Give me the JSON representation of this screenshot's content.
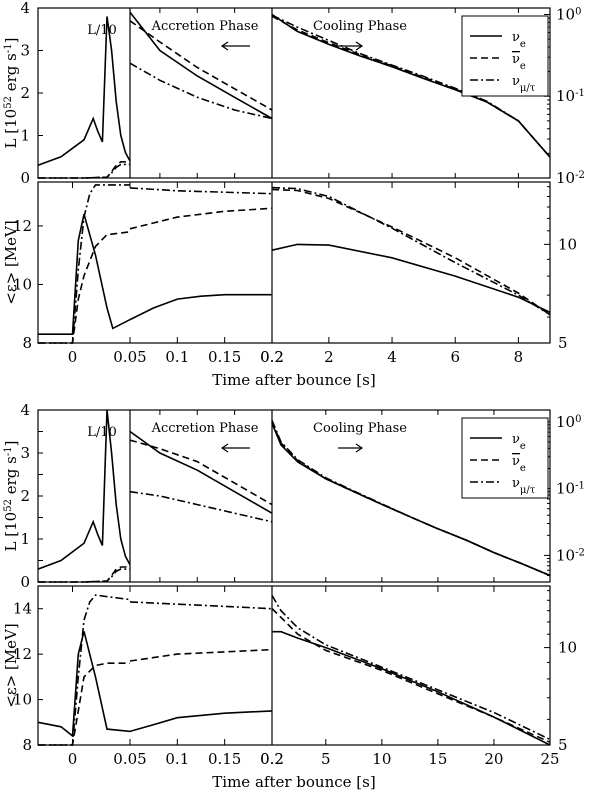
{
  "chart_data": [
    {
      "type": "line",
      "figure": "top",
      "xlabel": "Time after bounce [s]",
      "legend": {
        "placement": "top-right",
        "entries": [
          "νe",
          "ν̄e",
          "νμ/τ"
        ]
      },
      "annotations": {
        "inset": "L/10",
        "accretion": "Accretion Phase",
        "cooling": "Cooling Phase"
      },
      "luminosity_panel": {
        "ylabel": "L [10^52 erg s^-1]",
        "left_ylim": [
          0,
          4
        ],
        "left_yticks": [
          "0",
          "1",
          "2",
          "3",
          "4"
        ],
        "right_scale": "log",
        "right_ylim": [
          0.01,
          1.2
        ],
        "right_yticks": [
          {
            "v": 1,
            "t": "10^0"
          },
          {
            "v": 0.1,
            "t": "10^-1"
          },
          {
            "v": 0.01,
            "t": "10^-2"
          }
        ],
        "early_xlim": [
          -0.03,
          0.01
        ],
        "accretion_xlim": [
          0.01,
          0.2
        ],
        "accretion_xticks": [
          "0.05",
          "0.1",
          "0.15",
          "0.2"
        ],
        "cooling_xlim": [
          0.2,
          9
        ],
        "cooling_xticks": [
          "2",
          "4",
          "6",
          "8"
        ],
        "early_series": [
          {
            "name": "νe",
            "x": [
              -0.03,
              -0.02,
              -0.01,
              -0.006,
              -0.004,
              -0.002,
              0,
              0.002,
              0.004,
              0.006,
              0.008,
              0.01
            ],
            "y": [
              0.3,
              0.5,
              0.9,
              1.4,
              1.1,
              0.85,
              3.8,
              3.0,
              1.8,
              1.0,
              0.6,
              0.4
            ]
          },
          {
            "name": "ν̄e",
            "x": [
              -0.03,
              -0.01,
              0,
              0.002,
              0.004,
              0.006,
              0.01
            ],
            "y": [
              0,
              0,
              0.02,
              0.15,
              0.3,
              0.38,
              0.38
            ]
          },
          {
            "name": "νμ/τ",
            "x": [
              -0.03,
              -0.01,
              0,
              0.002,
              0.004,
              0.006,
              0.01
            ],
            "y": [
              0,
              0,
              0.02,
              0.12,
              0.25,
              0.32,
              0.32
            ]
          }
        ],
        "accretion_series": [
          {
            "name": "νe",
            "x": [
              0.01,
              0.05,
              0.1,
              0.15,
              0.2
            ],
            "y": [
              3.9,
              3.0,
              2.4,
              1.9,
              1.4
            ]
          },
          {
            "name": "ν̄e",
            "x": [
              0.01,
              0.05,
              0.1,
              0.15,
              0.2
            ],
            "y": [
              3.7,
              3.2,
              2.6,
              2.1,
              1.6
            ]
          },
          {
            "name": "νμ/τ",
            "x": [
              0.01,
              0.05,
              0.1,
              0.15,
              0.2
            ],
            "y": [
              2.7,
              2.3,
              1.9,
              1.6,
              1.4
            ]
          }
        ],
        "cooling_series": [
          {
            "name": "νe",
            "x": [
              0.2,
              1,
              2,
              3,
              4,
              5,
              6,
              7,
              8,
              9
            ],
            "y": [
              1.0,
              0.62,
              0.43,
              0.31,
              0.23,
              0.165,
              0.12,
              0.085,
              0.05,
              0.018
            ]
          },
          {
            "name": "ν̄e",
            "x": [
              0.2,
              1,
              2,
              3,
              4,
              5,
              6,
              7,
              8,
              9
            ],
            "y": [
              0.95,
              0.65,
              0.45,
              0.32,
              0.235,
              0.17,
              0.122,
              0.085,
              0.05,
              0.018
            ]
          },
          {
            "name": "νμ/τ",
            "x": [
              0.2,
              1,
              2,
              3,
              4,
              5,
              6,
              7,
              8,
              9
            ],
            "y": [
              0.98,
              0.7,
              0.48,
              0.33,
              0.24,
              0.175,
              0.125,
              0.087,
              0.05,
              0.018
            ]
          }
        ]
      },
      "energy_panel": {
        "ylabel": "<ε> [MeV]",
        "left_ylim": [
          8,
          13.5
        ],
        "left_yticks": [
          "8",
          "10",
          "12"
        ],
        "right_ylim": [
          5,
          15.5
        ],
        "right_yticks": [
          "5",
          "10"
        ],
        "early_xlim": [
          -0.03,
          0.05
        ],
        "early_xticks": [
          "0",
          "0.05"
        ],
        "accretion_xlim": [
          0.05,
          0.2
        ],
        "accretion_xticks": [
          "0.1",
          "0.15",
          "0.2"
        ],
        "cooling_xlim": [
          0.2,
          9
        ],
        "cooling_xticks": [
          "0.2",
          "2",
          "4",
          "6",
          "8"
        ],
        "series": [
          {
            "name": "νe",
            "early": {
              "x": [
                -0.03,
                -0.01,
                0,
                0.005,
                0.01,
                0.02,
                0.03,
                0.035,
                0.05
              ],
              "y": [
                8.3,
                8.3,
                8.3,
                11.5,
                12.4,
                11.0,
                9.2,
                8.5,
                8.8
              ]
            },
            "accretion": {
              "x": [
                0.05,
                0.075,
                0.1,
                0.125,
                0.15,
                0.2
              ],
              "y": [
                8.8,
                9.2,
                9.5,
                9.6,
                9.65,
                9.65
              ]
            },
            "cooling": {
              "x": [
                0.2,
                1,
                2,
                4,
                6,
                8,
                9
              ],
              "y": [
                9.6,
                10.0,
                9.95,
                9.1,
                8.0,
                6.9,
                6.2
              ]
            }
          },
          {
            "name": "ν̄e",
            "early": {
              "x": [
                -0.03,
                0,
                0.005,
                0.01,
                0.02,
                0.03,
                0.05
              ],
              "y": [
                8.0,
                8.0,
                9.5,
                10.3,
                11.3,
                11.7,
                11.8
              ]
            },
            "accretion": {
              "x": [
                0.05,
                0.1,
                0.15,
                0.2
              ],
              "y": [
                11.9,
                12.3,
                12.5,
                12.6
              ]
            },
            "cooling": {
              "x": [
                0.2,
                1,
                2,
                4,
                6,
                8,
                9
              ],
              "y": [
                14.7,
                14.6,
                13.8,
                11.3,
                9.1,
                7.1,
                6.1
              ]
            }
          },
          {
            "name": "νμ/τ",
            "early": {
              "x": [
                -0.03,
                0,
                0.005,
                0.01,
                0.015,
                0.02,
                0.05
              ],
              "y": [
                8.0,
                8.0,
                10.5,
                12.3,
                13.1,
                13.4,
                13.4
              ]
            },
            "accretion": {
              "x": [
                0.05,
                0.1,
                0.15,
                0.2
              ],
              "y": [
                13.3,
                13.2,
                13.15,
                13.1
              ]
            },
            "cooling": {
              "x": [
                0.2,
                1,
                2,
                4,
                6,
                8,
                9
              ],
              "y": [
                14.9,
                14.8,
                14.0,
                11.2,
                8.8,
                7.0,
                6.1
              ]
            }
          }
        ]
      }
    },
    {
      "type": "line",
      "figure": "bottom",
      "xlabel": "Time after bounce [s]",
      "legend": {
        "placement": "top-right",
        "entries": [
          "νe",
          "ν̄e",
          "νμ/τ"
        ]
      },
      "annotations": {
        "inset": "L/10",
        "accretion": "Accretion Phase",
        "cooling": "Cooling Phase"
      },
      "luminosity_panel": {
        "ylabel": "L [10^52 erg s^-1]",
        "left_ylim": [
          0,
          4
        ],
        "left_yticks": [
          "0",
          "0.5",
          "1",
          "1.5",
          "2",
          "2.5",
          "3",
          "3.5",
          "4"
        ],
        "right_scale": "log",
        "right_ylim": [
          0.004,
          1.5
        ],
        "right_yticks": [
          {
            "v": 1,
            "t": "10^0"
          },
          {
            "v": 0.1,
            "t": "10^-1"
          },
          {
            "v": 0.01,
            "t": "10^-2"
          }
        ],
        "early_xlim": [
          -0.03,
          0.01
        ],
        "accretion_xlim": [
          0.01,
          0.2
        ],
        "accretion_xticks": [
          "0.05",
          "0.1",
          "0.15",
          "0.2"
        ],
        "cooling_xlim": [
          0.2,
          25
        ],
        "cooling_xticks": [
          "5",
          "10",
          "15",
          "20",
          "25"
        ],
        "early_series": [
          {
            "name": "νe",
            "x": [
              -0.03,
              -0.02,
              -0.01,
              -0.006,
              -0.004,
              -0.002,
              0,
              0.002,
              0.004,
              0.006,
              0.008,
              0.01
            ],
            "y": [
              0.3,
              0.5,
              0.9,
              1.4,
              1.1,
              0.85,
              4.0,
              3.0,
              1.8,
              1.0,
              0.6,
              0.4
            ]
          },
          {
            "name": "ν̄e",
            "x": [
              -0.03,
              -0.01,
              0,
              0.002,
              0.004,
              0.006,
              0.01
            ],
            "y": [
              0,
              0,
              0.02,
              0.15,
              0.3,
              0.35,
              0.35
            ]
          },
          {
            "name": "νμ/τ",
            "x": [
              -0.03,
              -0.01,
              0,
              0.002,
              0.004,
              0.006,
              0.01
            ],
            "y": [
              0,
              0,
              0.02,
              0.12,
              0.25,
              0.3,
              0.3
            ]
          }
        ],
        "accretion_series": [
          {
            "name": "νe",
            "x": [
              0.01,
              0.05,
              0.1,
              0.15,
              0.2
            ],
            "y": [
              3.5,
              3.0,
              2.6,
              2.1,
              1.6
            ]
          },
          {
            "name": "ν̄e",
            "x": [
              0.01,
              0.05,
              0.1,
              0.15,
              0.2
            ],
            "y": [
              3.3,
              3.1,
              2.8,
              2.3,
              1.8
            ]
          },
          {
            "name": "νμ/τ",
            "x": [
              0.01,
              0.05,
              0.1,
              0.15,
              0.2
            ],
            "y": [
              2.1,
              2.0,
              1.8,
              1.6,
              1.4
            ]
          }
        ],
        "cooling_series": [
          {
            "name": "νe",
            "x": [
              0.2,
              1,
              2.5,
              5,
              7.5,
              10,
              12.5,
              15,
              17.5,
              20,
              22.5,
              25
            ],
            "y": [
              0.95,
              0.45,
              0.25,
              0.14,
              0.09,
              0.058,
              0.038,
              0.025,
              0.017,
              0.011,
              0.0075,
              0.005
            ]
          },
          {
            "name": "ν̄e",
            "x": [
              0.2,
              1,
              2.5,
              5,
              7.5,
              10,
              12.5,
              15,
              17.5,
              20,
              22.5,
              25
            ],
            "y": [
              1.0,
              0.48,
              0.26,
              0.14,
              0.09,
              0.058,
              0.038,
              0.025,
              0.017,
              0.011,
              0.0075,
              0.005
            ]
          },
          {
            "name": "νμ/τ",
            "x": [
              0.2,
              1,
              2.5,
              5,
              7.5,
              10,
              12.5,
              15,
              17.5,
              20,
              22.5,
              25
            ],
            "y": [
              1.05,
              0.5,
              0.27,
              0.145,
              0.092,
              0.059,
              0.038,
              0.025,
              0.017,
              0.011,
              0.0075,
              0.005
            ]
          }
        ]
      },
      "energy_panel": {
        "ylabel": "<ε> [MeV]",
        "left_ylim": [
          8,
          15
        ],
        "left_yticks": [
          "8",
          "10",
          "12",
          "14"
        ],
        "right_ylim": [
          5,
          15.5
        ],
        "right_yticks": [
          "5",
          "10"
        ],
        "early_xlim": [
          -0.03,
          0.05
        ],
        "early_xticks": [
          "0",
          "0.05"
        ],
        "accretion_xlim": [
          0.05,
          0.2
        ],
        "accretion_xticks": [
          "0.1",
          "0.15",
          "0.2"
        ],
        "cooling_xlim": [
          0.2,
          25
        ],
        "cooling_xticks": [
          "0.2",
          "5",
          "10",
          "15",
          "20",
          "25"
        ],
        "series": [
          {
            "name": "νe",
            "early": {
              "x": [
                -0.03,
                -0.01,
                0,
                0.005,
                0.01,
                0.02,
                0.03,
                0.05
              ],
              "y": [
                9.0,
                8.8,
                8.4,
                12.0,
                13.0,
                11.0,
                8.7,
                8.6
              ]
            },
            "accretion": {
              "x": [
                0.05,
                0.075,
                0.1,
                0.15,
                0.2
              ],
              "y": [
                8.6,
                8.9,
                9.2,
                9.4,
                9.5
              ]
            },
            "cooling": {
              "x": [
                0.2,
                1,
                2.5,
                5,
                10,
                15,
                20,
                25
              ],
              "y": [
                11.2,
                11.2,
                10.7,
                10.0,
                8.6,
                7.3,
                6.1,
                5.0
              ]
            }
          },
          {
            "name": "ν̄e",
            "early": {
              "x": [
                -0.03,
                0,
                0.005,
                0.01,
                0.02,
                0.03,
                0.05
              ],
              "y": [
                8.0,
                8.0,
                9.5,
                11.0,
                11.5,
                11.6,
                11.6
              ]
            },
            "accretion": {
              "x": [
                0.05,
                0.1,
                0.15,
                0.2
              ],
              "y": [
                11.7,
                12.0,
                12.1,
                12.2
              ]
            },
            "cooling": {
              "x": [
                0.2,
                1,
                2.5,
                5,
                10,
                15,
                20,
                25
              ],
              "y": [
                13.2,
                12.4,
                11.0,
                9.8,
                8.5,
                7.2,
                6.1,
                5.1
              ]
            }
          },
          {
            "name": "νμ/τ",
            "early": {
              "x": [
                -0.03,
                0,
                0.005,
                0.01,
                0.015,
                0.02,
                0.05
              ],
              "y": [
                8.0,
                8.0,
                11.0,
                13.5,
                14.3,
                14.6,
                14.4
              ]
            },
            "accretion": {
              "x": [
                0.05,
                0.1,
                0.15,
                0.2
              ],
              "y": [
                14.3,
                14.2,
                14.1,
                14.0
              ]
            },
            "cooling": {
              "x": [
                0.2,
                1,
                2.5,
                5,
                10,
                15,
                20,
                25
              ],
              "y": [
                14.5,
                13.0,
                11.5,
                10.2,
                8.7,
                7.4,
                6.3,
                5.2
              ]
            }
          }
        ]
      }
    }
  ]
}
